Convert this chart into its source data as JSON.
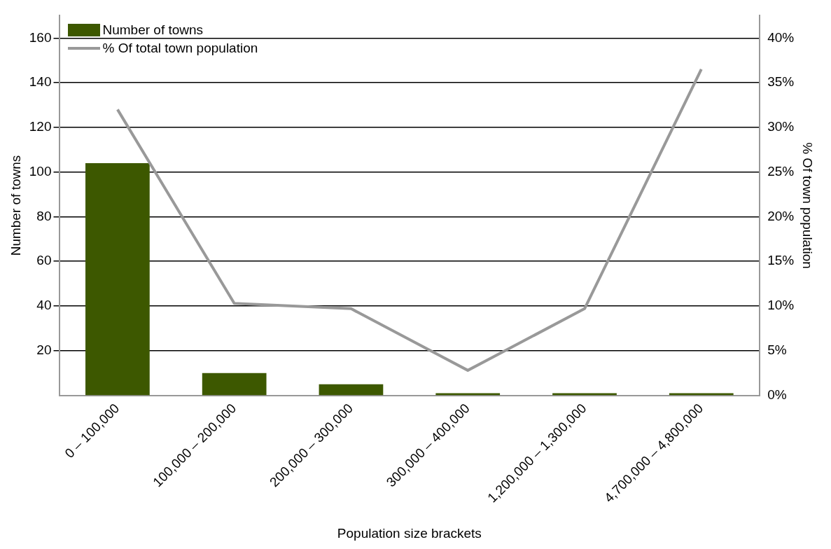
{
  "chart_data": {
    "type": "bar",
    "xlabel": "Population size brackets",
    "ylabel": "Number of towns",
    "y2label": "% Of town population",
    "categories": [
      "0 – 100,000",
      "100,000 – 200,000",
      "200,000 – 300,000",
      "300,000 – 400,000",
      "1,200,000 – 1,300,000",
      "4,700,000 – 4,800,000"
    ],
    "series": [
      {
        "name": "Number of towns",
        "color": "#3d5800",
        "values": [
          104,
          10,
          5,
          1,
          1,
          1
        ]
      },
      {
        "name": "% Of total town population",
        "type": "line",
        "axis": "y2",
        "color": "#999999",
        "values": [
          32,
          10.3,
          9.7,
          2.8,
          9.7,
          36.5
        ]
      }
    ],
    "ylim": [
      0,
      170
    ],
    "yticks": [
      20,
      40,
      60,
      80,
      100,
      120,
      140,
      160
    ],
    "y2lim": [
      0,
      42.5
    ],
    "y2ticks": [
      {
        "value": 0,
        "label": "0%"
      },
      {
        "value": 5,
        "label": "5%"
      },
      {
        "value": 10,
        "label": "10%"
      },
      {
        "value": 15,
        "label": "15%"
      },
      {
        "value": 20,
        "label": "20%"
      },
      {
        "value": 25,
        "label": "25%"
      },
      {
        "value": 30,
        "label": "30%"
      },
      {
        "value": 35,
        "label": "35%"
      },
      {
        "value": 40,
        "label": "40%"
      }
    ],
    "grid": "y",
    "legend": "top left",
    "marker": "none"
  }
}
